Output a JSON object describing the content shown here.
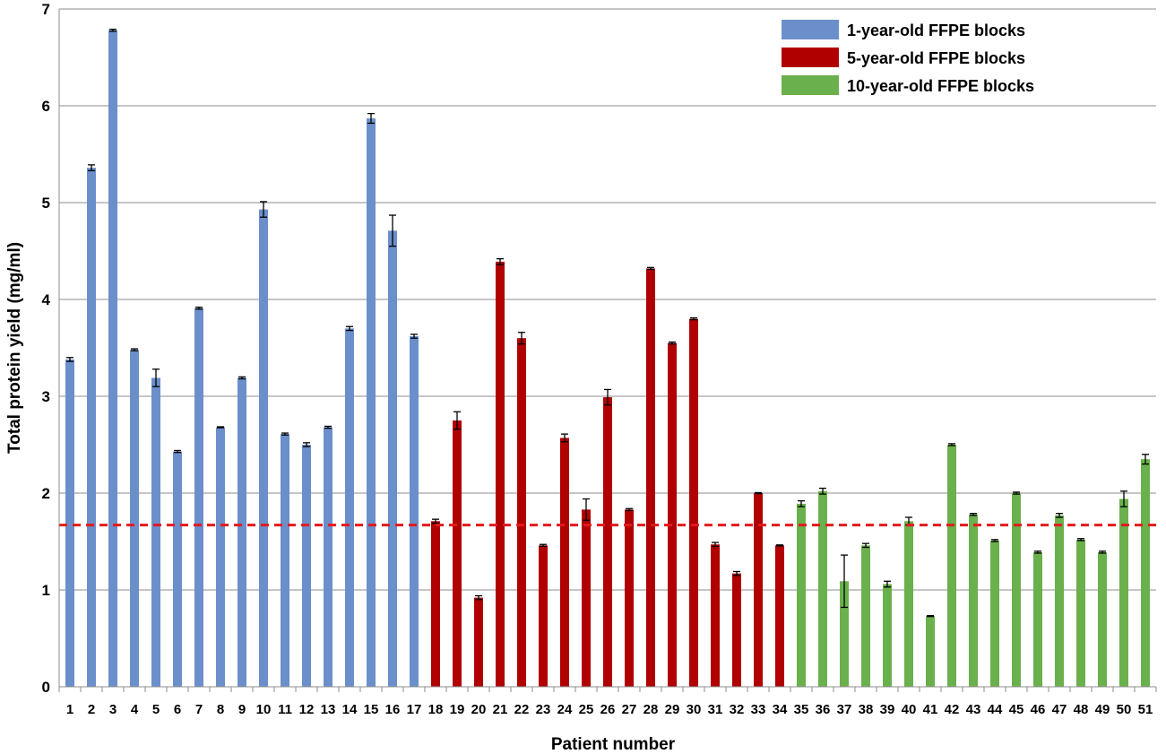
{
  "chart_data": {
    "type": "bar",
    "title": "",
    "xlabel": "Patient number",
    "ylabel": "Total protein yield (mg/ml)",
    "ylim": [
      0,
      7
    ],
    "yticks": [
      0,
      1,
      2,
      3,
      4,
      5,
      6,
      7
    ],
    "grid": true,
    "legend_position": "top-right",
    "threshold_line": {
      "value": 1.67,
      "color": "#e31a1c",
      "style": "dashed"
    },
    "categories": [
      "1",
      "2",
      "3",
      "4",
      "5",
      "6",
      "7",
      "8",
      "9",
      "10",
      "11",
      "12",
      "13",
      "14",
      "15",
      "16",
      "17",
      "18",
      "19",
      "20",
      "21",
      "22",
      "23",
      "24",
      "25",
      "26",
      "27",
      "28",
      "29",
      "30",
      "31",
      "32",
      "33",
      "34",
      "35",
      "36",
      "37",
      "38",
      "39",
      "40",
      "41",
      "42",
      "43",
      "44",
      "45",
      "46",
      "47",
      "48",
      "49",
      "50",
      "51"
    ],
    "series": [
      {
        "name": "1-year-old FFPE blocks",
        "color": "#6b8fcb",
        "x": [
          "1",
          "2",
          "3",
          "4",
          "5",
          "6",
          "7",
          "8",
          "9",
          "10",
          "11",
          "12",
          "13",
          "14",
          "15",
          "16",
          "17"
        ],
        "values": [
          3.38,
          5.36,
          6.78,
          3.48,
          3.19,
          2.43,
          3.91,
          2.68,
          3.19,
          4.93,
          2.61,
          2.5,
          2.68,
          3.7,
          5.87,
          4.71,
          3.62
        ],
        "errors": [
          0.02,
          0.03,
          0.01,
          0.01,
          0.09,
          0.01,
          0.01,
          0.005,
          0.01,
          0.08,
          0.01,
          0.02,
          0.01,
          0.02,
          0.05,
          0.16,
          0.02
        ]
      },
      {
        "name": "5-year-old FFPE blocks",
        "color": "#b00000",
        "x": [
          "18",
          "19",
          "20",
          "21",
          "22",
          "23",
          "24",
          "25",
          "26",
          "27",
          "28",
          "29",
          "30",
          "31",
          "32",
          "33",
          "34"
        ],
        "values": [
          1.71,
          2.75,
          0.92,
          4.39,
          3.6,
          1.46,
          2.57,
          1.83,
          2.99,
          1.83,
          4.32,
          3.55,
          3.8,
          1.47,
          1.17,
          2.0,
          1.46
        ],
        "errors": [
          0.02,
          0.09,
          0.02,
          0.03,
          0.06,
          0.01,
          0.04,
          0.11,
          0.08,
          0.01,
          0.01,
          0.01,
          0.01,
          0.02,
          0.02,
          0.005,
          0.005
        ]
      },
      {
        "name": "10-year-old FFPE blocks",
        "color": "#6ab04c",
        "x": [
          "35",
          "36",
          "37",
          "38",
          "39",
          "40",
          "41",
          "42",
          "43",
          "44",
          "45",
          "46",
          "47",
          "48",
          "49",
          "50",
          "51"
        ],
        "values": [
          1.89,
          2.02,
          1.09,
          1.46,
          1.06,
          1.71,
          0.73,
          2.5,
          1.78,
          1.51,
          2.0,
          1.39,
          1.77,
          1.52,
          1.39,
          1.94,
          2.35
        ],
        "errors": [
          0.03,
          0.03,
          0.27,
          0.02,
          0.03,
          0.04,
          0.005,
          0.01,
          0.01,
          0.01,
          0.01,
          0.01,
          0.02,
          0.01,
          0.01,
          0.08,
          0.05
        ]
      }
    ]
  }
}
